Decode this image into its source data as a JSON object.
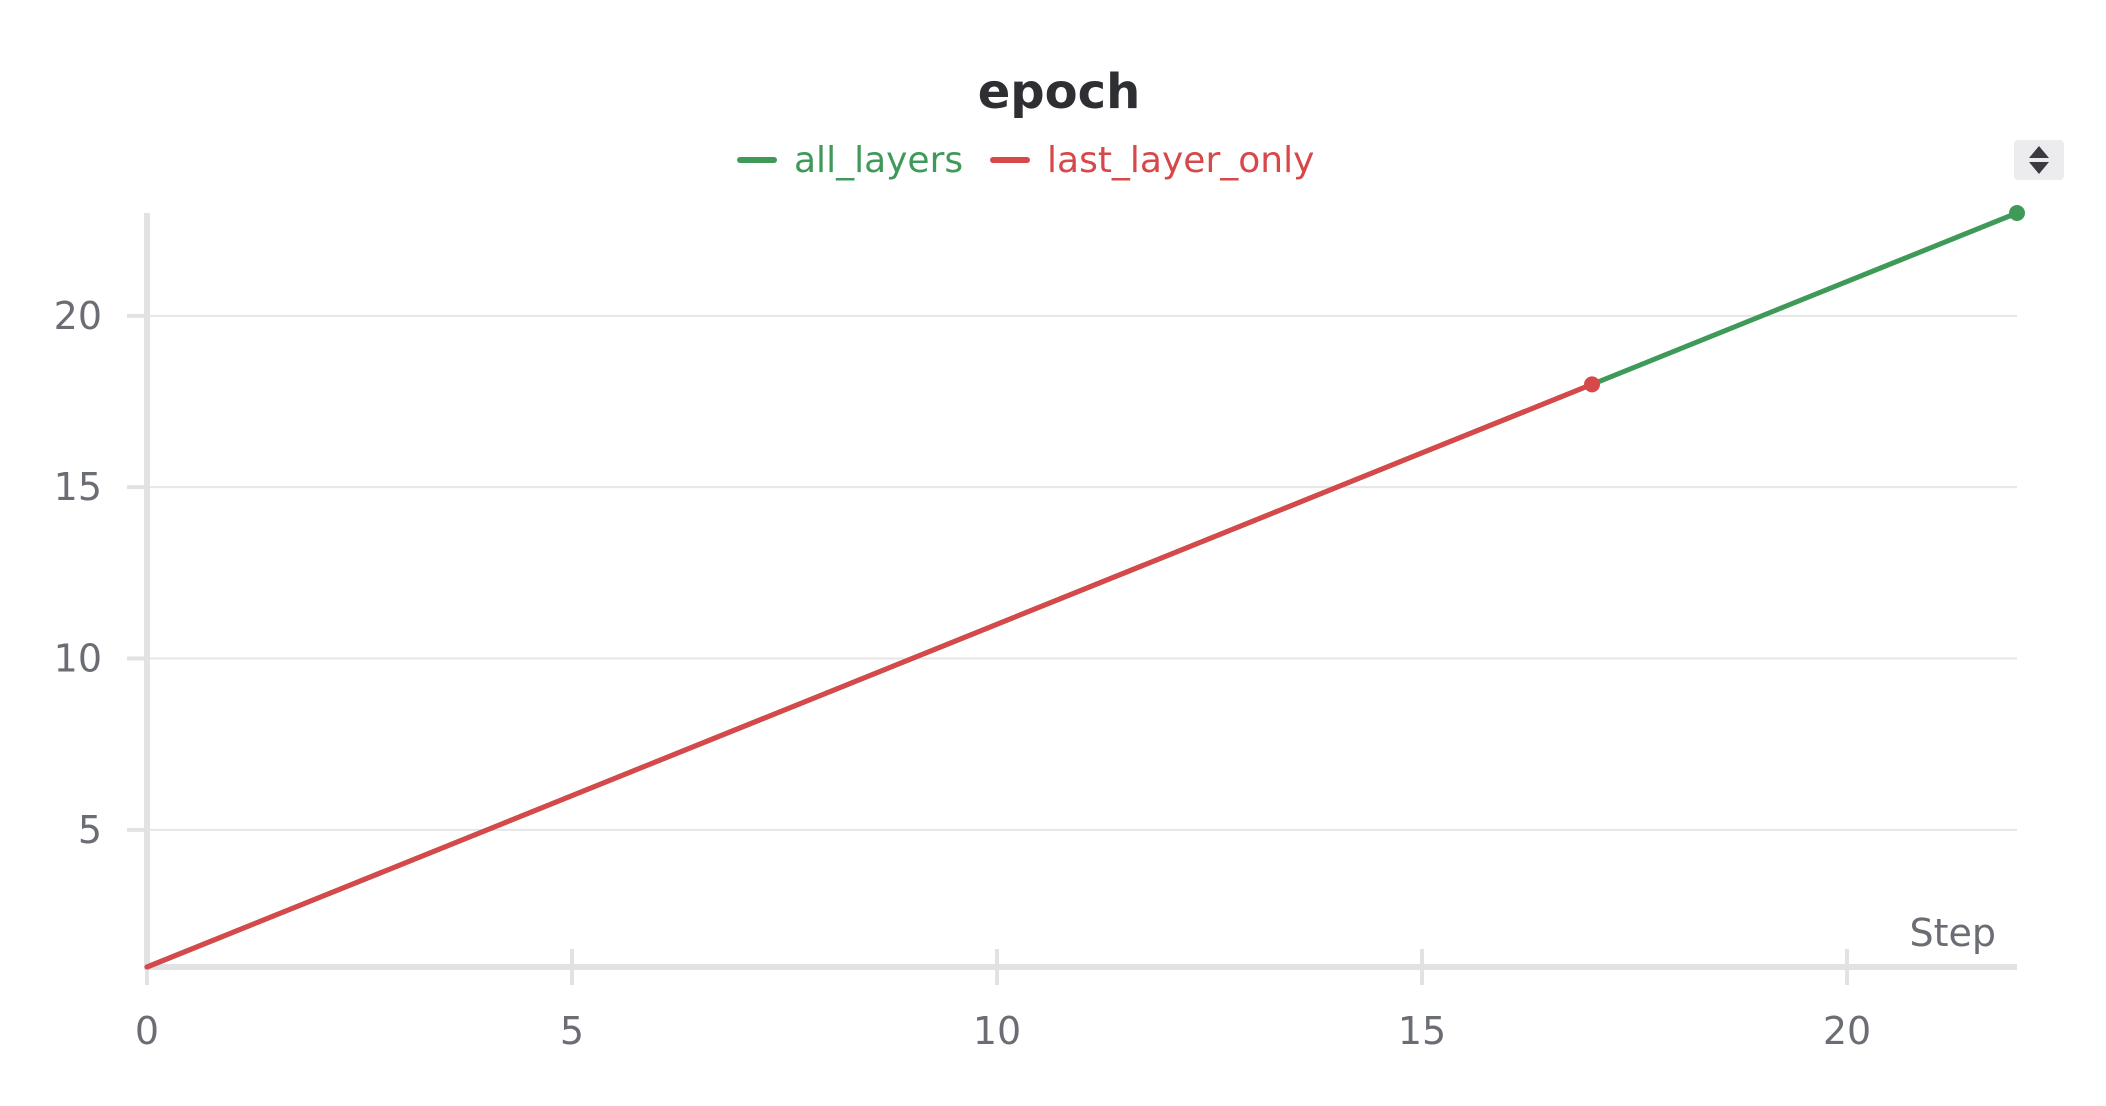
{
  "chart_data": {
    "type": "line",
    "title": "epoch",
    "xlabel": "Step",
    "ylabel": "",
    "xlim": [
      0,
      22
    ],
    "ylim": [
      1,
      23
    ],
    "xticks": [
      0,
      5,
      10,
      15,
      20
    ],
    "yticks": [
      5,
      10,
      15,
      20
    ],
    "grid": true,
    "legend_position": "top-center",
    "series": [
      {
        "name": "all_layers",
        "color": "#3f9a5a",
        "x": [
          0,
          22
        ],
        "y": [
          1,
          23
        ]
      },
      {
        "name": "last_layer_only",
        "color": "#d6484a",
        "x": [
          0,
          17
        ],
        "y": [
          1,
          18
        ]
      }
    ]
  },
  "controls": {
    "sort_icon": "sort-up-down-icon"
  }
}
